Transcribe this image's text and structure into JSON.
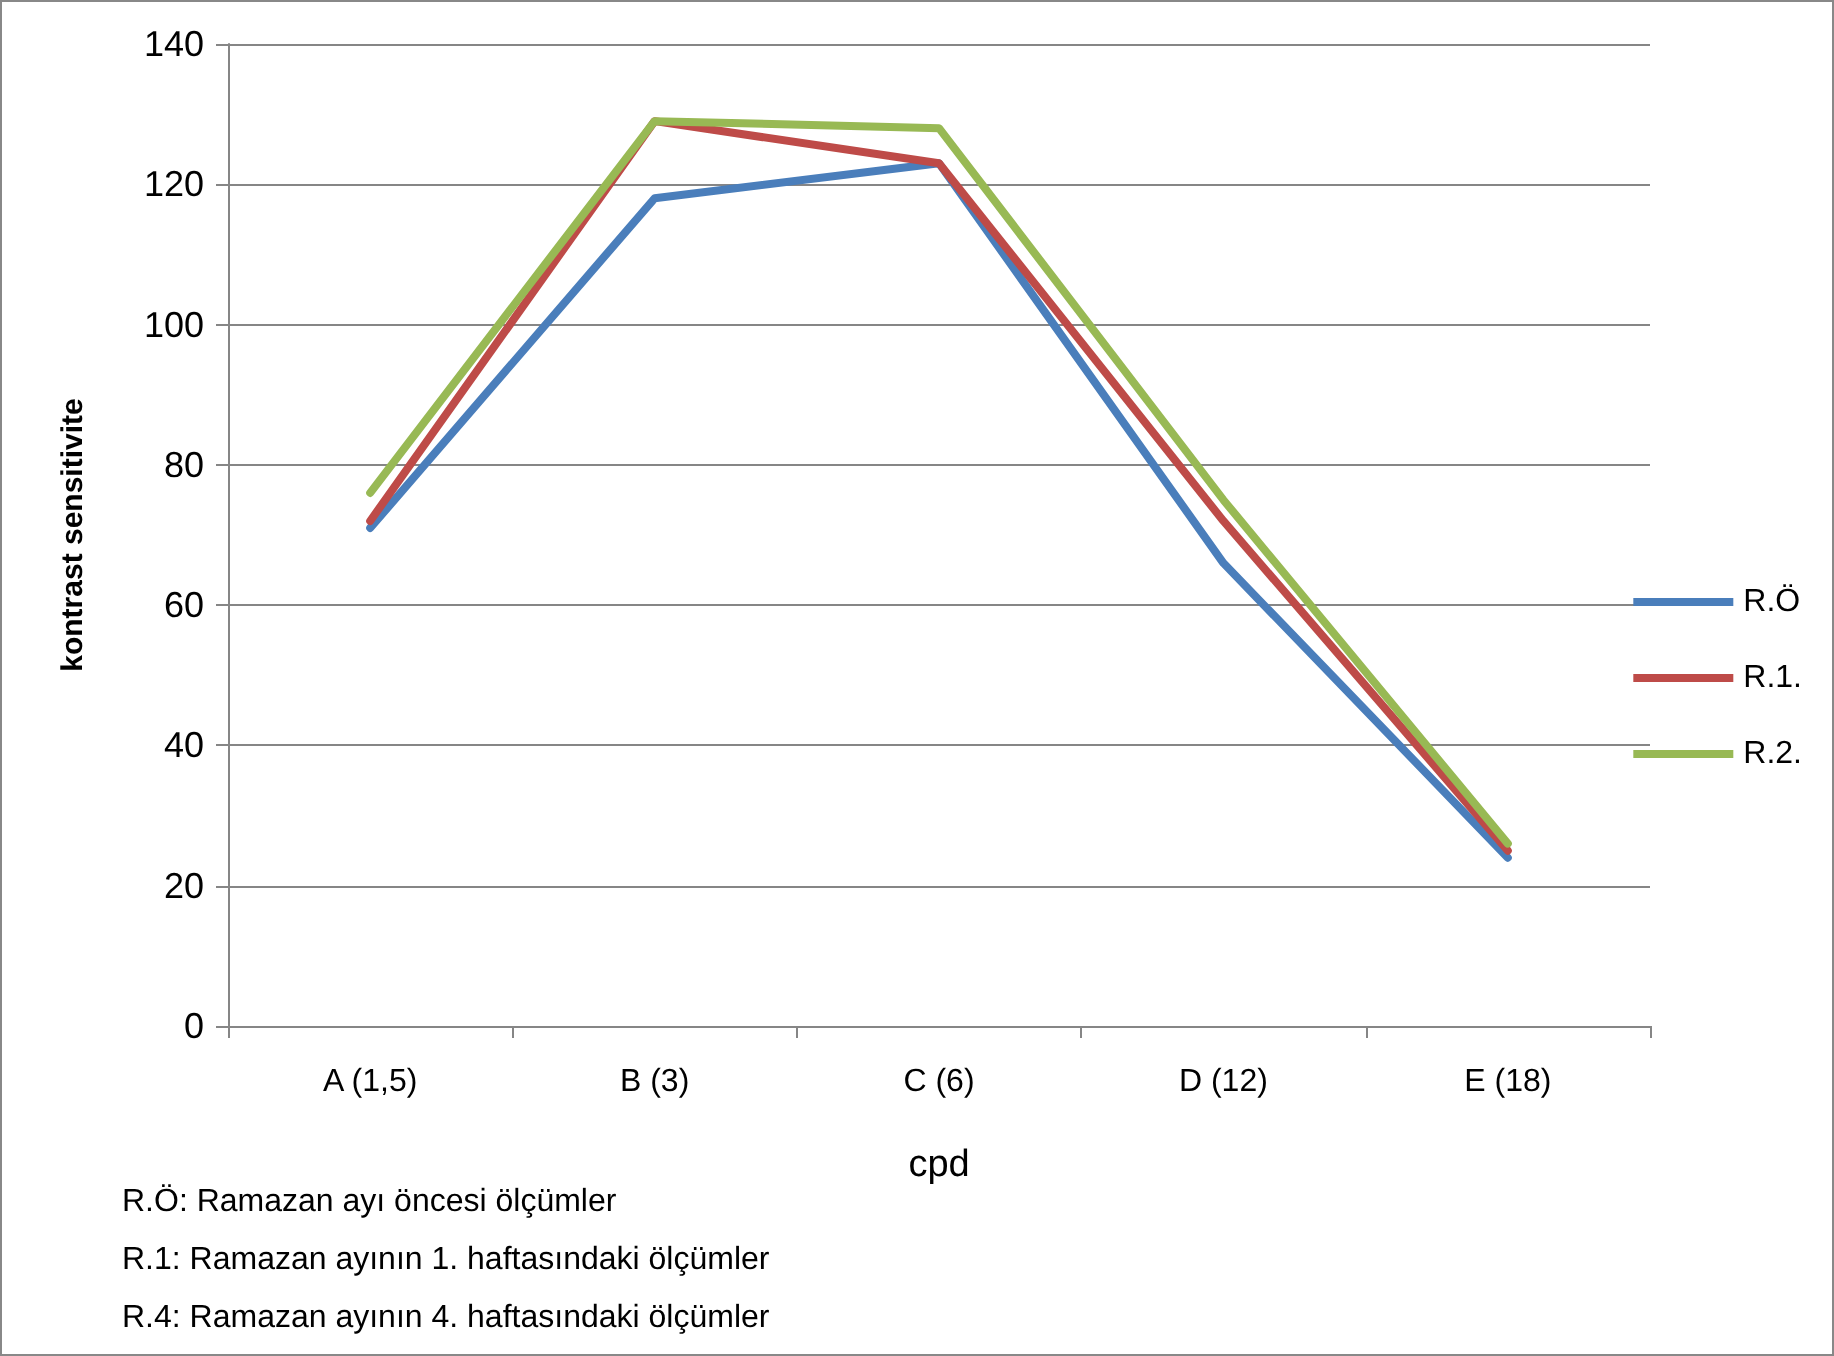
{
  "chart_data": {
    "type": "line",
    "xlabel": "cpd",
    "ylabel": "kontrast sensitivite",
    "categories": [
      "A (1,5)",
      "B (3)",
      "C (6)",
      "D (12)",
      "E (18)"
    ],
    "series": [
      {
        "name": "R.Ö",
        "color": "#4a7ebb",
        "values": [
          71,
          118,
          123,
          66,
          24
        ]
      },
      {
        "name": "R.1.",
        "color": "#be4b48",
        "values": [
          72,
          129,
          123,
          72,
          25
        ]
      },
      {
        "name": "R.2.",
        "color": "#98b954",
        "values": [
          76,
          129,
          128,
          75,
          26
        ]
      }
    ],
    "ylim": [
      0,
      140
    ],
    "yticks": [
      0,
      20,
      40,
      60,
      80,
      100,
      120,
      140
    ],
    "grid": "y",
    "legend": "right",
    "marker": "none",
    "line_style": "solid",
    "annotations": [
      "R.Ö: Ramazan ayı öncesi ölçümler",
      "R.1: Ramazan ayının 1. haftasındaki ölçümler",
      "R.4: Ramazan ayının 4. haftasındaki ölçümler"
    ]
  }
}
